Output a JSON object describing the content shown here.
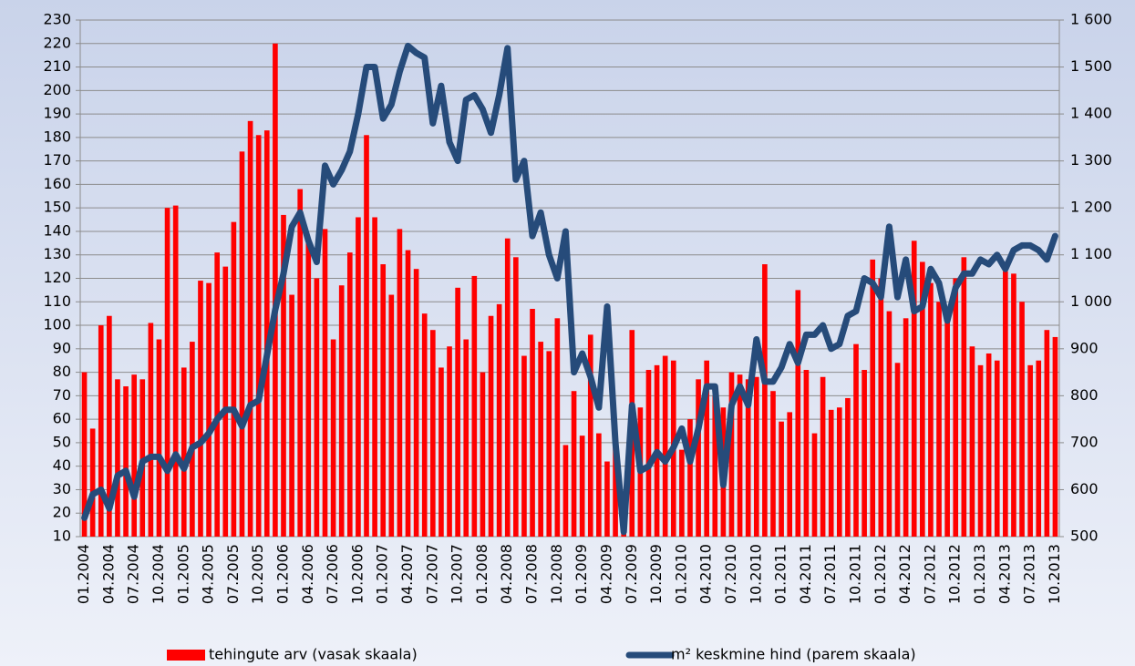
{
  "chart_data": {
    "type": "bar",
    "categories": [
      "01.2004",
      null,
      null,
      "04.2004",
      null,
      null,
      "07.2004",
      null,
      null,
      "10.2004",
      null,
      null,
      "01.2005",
      null,
      null,
      "04.2005",
      null,
      null,
      "07.2005",
      null,
      null,
      "10.2005",
      null,
      null,
      "01.2006",
      null,
      null,
      "04.2006",
      null,
      null,
      "07.2006",
      null,
      null,
      "10.2006",
      null,
      null,
      "01.2007",
      null,
      null,
      "04.2007",
      null,
      null,
      "07.2007",
      null,
      null,
      "10.2007",
      null,
      null,
      "01.2008",
      null,
      null,
      "04.2008",
      null,
      null,
      "07.2008",
      null,
      null,
      "10.2008",
      null,
      null,
      "01.2009",
      null,
      null,
      "04.2009",
      null,
      null,
      "07.2009",
      null,
      null,
      "10.2009",
      null,
      null,
      "01.2010",
      null,
      null,
      "04.2010",
      null,
      null,
      "07.2010",
      null,
      null,
      "10.2010",
      null,
      null,
      "01.2011",
      null,
      null,
      "04.2011",
      null,
      null,
      "07.2011",
      null,
      null,
      "10.2011",
      null,
      null,
      "01.2012",
      null,
      null,
      "04.2012",
      null,
      null,
      "07.2012",
      null,
      null,
      "10.2012",
      null,
      null,
      "01.2013",
      null,
      null,
      "04.2013",
      null,
      null,
      "07.2013",
      null,
      null,
      "10.2013"
    ],
    "series": [
      {
        "name": "tehingute arv (vasak skaala)",
        "type": "bar",
        "color": "#ff0000",
        "values": [
          80,
          56,
          100,
          104,
          77,
          74,
          79,
          77,
          101,
          94,
          150,
          151,
          82,
          93,
          119,
          118,
          131,
          125,
          144,
          174,
          187,
          181,
          183,
          220,
          147,
          113,
          158,
          135,
          120,
          141,
          94,
          117,
          131,
          146,
          181,
          146,
          126,
          113,
          141,
          132,
          124,
          105,
          98,
          82,
          91,
          116,
          94,
          121,
          80,
          104,
          109,
          137,
          129,
          87,
          107,
          93,
          89,
          103,
          49,
          72,
          53,
          96,
          54,
          42,
          51,
          25,
          98,
          65,
          81,
          83,
          87,
          85,
          47,
          60,
          77,
          85,
          70,
          65,
          80,
          79,
          77,
          78,
          126,
          72,
          59,
          63,
          115,
          81,
          54,
          78,
          64,
          65,
          69,
          92,
          81,
          128,
          120,
          106,
          84,
          103,
          136,
          127,
          118,
          110,
          107,
          120,
          129,
          91,
          83,
          88,
          85,
          123,
          122,
          110,
          83,
          85,
          98,
          95
        ]
      },
      {
        "name": "m² keskmine hind (parem skaala)",
        "type": "line",
        "axis": "y2",
        "color": "#264b7a",
        "values": [
          540,
          590,
          600,
          560,
          630,
          640,
          585,
          660,
          670,
          670,
          640,
          675,
          645,
          690,
          700,
          720,
          750,
          770,
          770,
          735,
          780,
          790,
          886,
          983,
          1060,
          1160,
          1190,
          1130,
          1085,
          1290,
          1250,
          1280,
          1320,
          1400,
          1500,
          1500,
          1390,
          1420,
          1490,
          1545,
          1530,
          1520,
          1380,
          1460,
          1340,
          1300,
          1430,
          1440,
          1410,
          1360,
          1440,
          1540,
          1260,
          1300,
          1140,
          1190,
          1100,
          1050,
          1150,
          850,
          890,
          840,
          775,
          990,
          700,
          510,
          780,
          640,
          650,
          680,
          660,
          690,
          730,
          660,
          730,
          820,
          820,
          610,
          780,
          820,
          780,
          920,
          830,
          830,
          860,
          910,
          870,
          930,
          930,
          950,
          900,
          910,
          970,
          980,
          1050,
          1040,
          1010,
          1160,
          1010,
          1090,
          980,
          990,
          1070,
          1040,
          960,
          1030,
          1060,
          1060,
          1090,
          1080,
          1100,
          1070,
          1110,
          1120,
          1120,
          1110,
          1090,
          1140
        ]
      }
    ],
    "ylim": [
      10,
      230
    ],
    "yticks": [
      10,
      20,
      30,
      40,
      50,
      60,
      70,
      80,
      90,
      100,
      110,
      120,
      130,
      140,
      150,
      160,
      170,
      180,
      190,
      200,
      210,
      220,
      230
    ],
    "y2lim": [
      500,
      1600
    ],
    "y2ticks": [
      500,
      600,
      700,
      800,
      900,
      {
        "value": 1000,
        "label": "1 000"
      },
      {
        "value": 1100,
        "label": "1 100"
      },
      {
        "value": 1200,
        "label": "1 200"
      },
      {
        "value": 1300,
        "label": "1 300"
      },
      {
        "value": 1400,
        "label": "1 400"
      },
      {
        "value": 1500,
        "label": "1 500"
      },
      {
        "value": 1600,
        "label": "1 600"
      }
    ],
    "grid": true,
    "legend": "bottom"
  }
}
